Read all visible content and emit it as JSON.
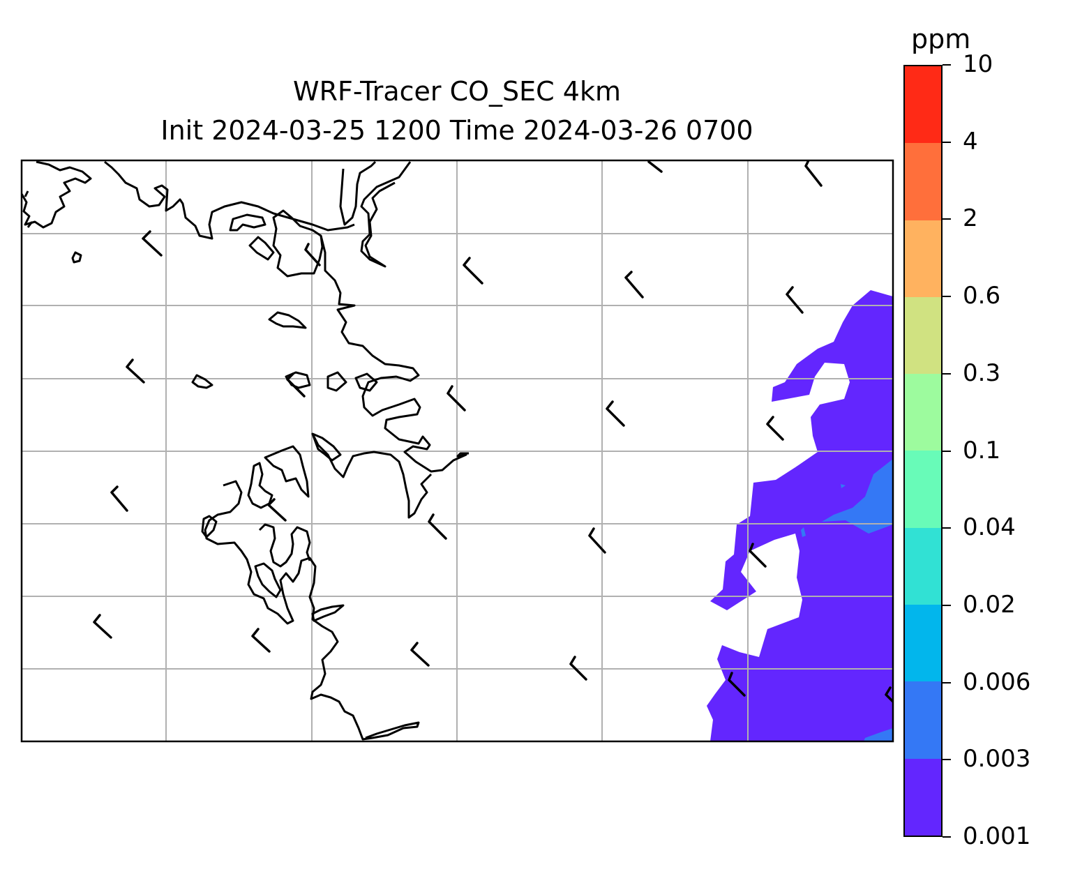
{
  "map": {
    "title": "WRF-Tracer CO_SEC 4km",
    "subtitle": "Init 2024-03-25 1200 Time 2024-03-26 0700",
    "gridlines": true,
    "field_colors": {
      "band_0_001": "#6326fe",
      "band_0_003": "#3478f5"
    }
  },
  "colorbar": {
    "unit": "ppm",
    "levels": [
      "0.001",
      "0.003",
      "0.006",
      "0.02",
      "0.04",
      "0.1",
      "0.3",
      "0.6",
      "2",
      "4",
      "10"
    ],
    "colors": [
      "#6326fe",
      "#3478f5",
      "#02b6ec",
      "#31e1d4",
      "#68fbb8",
      "#9dfb9e",
      "#d0e281",
      "#ffb25f",
      "#ff6f3b",
      "#ff2a16"
    ]
  }
}
